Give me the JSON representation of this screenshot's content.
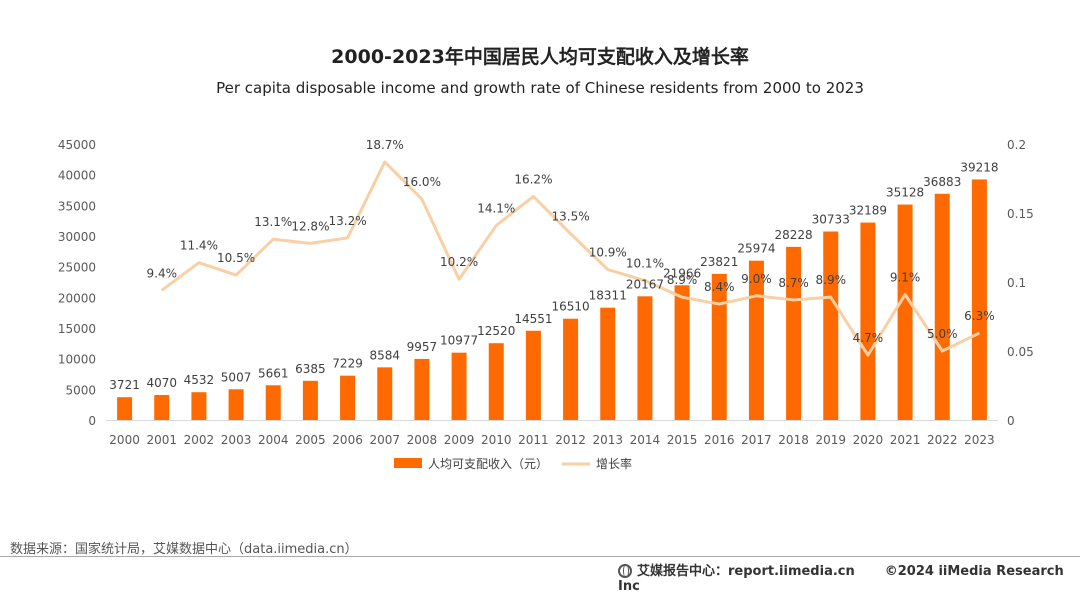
{
  "chart_data": {
    "type": "bar+line",
    "title": "2000-2023年中国居民人均可支配收入及增长率",
    "subtitle": "Per capita disposable income and growth rate of Chinese residents from 2000 to 2023",
    "categories": [
      "2000",
      "2001",
      "2002",
      "2003",
      "2004",
      "2005",
      "2006",
      "2007",
      "2008",
      "2009",
      "2010",
      "2011",
      "2012",
      "2013",
      "2014",
      "2015",
      "2016",
      "2017",
      "2018",
      "2019",
      "2020",
      "2021",
      "2022",
      "2023"
    ],
    "series": [
      {
        "name": "人均可支配收入（元）",
        "type": "bar",
        "axis": "left",
        "color": "#FF6A00",
        "values": [
          3721,
          4070,
          4532,
          5007,
          5661,
          6385,
          7229,
          8584,
          9957,
          10977,
          12520,
          14551,
          16510,
          18311,
          20167,
          21966,
          23821,
          25974,
          28228,
          30733,
          32189,
          35128,
          36883,
          39218
        ]
      },
      {
        "name": "增长率",
        "type": "line",
        "axis": "right",
        "color": "#F9CFA5",
        "values": [
          null,
          0.094,
          0.114,
          0.105,
          0.131,
          0.128,
          0.132,
          0.187,
          0.16,
          0.102,
          0.141,
          0.162,
          0.135,
          0.109,
          0.101,
          0.089,
          0.084,
          0.09,
          0.087,
          0.089,
          0.047,
          0.091,
          0.05,
          0.063
        ],
        "labels": [
          null,
          "9.4%",
          "11.4%",
          "10.5%",
          "13.1%",
          "12.8%",
          "13.2%",
          "18.7%",
          "16.0%",
          "10.2%",
          "14.1%",
          "16.2%",
          "13.5%",
          "10.9%",
          "10.1%",
          "8.9%",
          "8.4%",
          "9.0%",
          "8.7%",
          "8.9%",
          "4.7%",
          "9.1%",
          "5.0%",
          "6.3%"
        ]
      }
    ],
    "y_left": {
      "min": 0,
      "max": 45000,
      "ticks": [
        "0",
        "5000",
        "10000",
        "15000",
        "20000",
        "25000",
        "30000",
        "35000",
        "40000",
        "45000"
      ]
    },
    "y_right": {
      "min": 0,
      "max": 0.2,
      "ticks": [
        "0",
        "0.05",
        "0.1",
        "0.15",
        "0.2"
      ]
    },
    "grid": false,
    "legend_position": "bottom"
  },
  "footer": {
    "source": "数据来源：国家统计局，艾媒数据中心（data.iimedia.cn）",
    "brand_site": "艾媒报告中心：report.iimedia.cn",
    "copyright": "©2024  iiMedia Research  Inc"
  }
}
